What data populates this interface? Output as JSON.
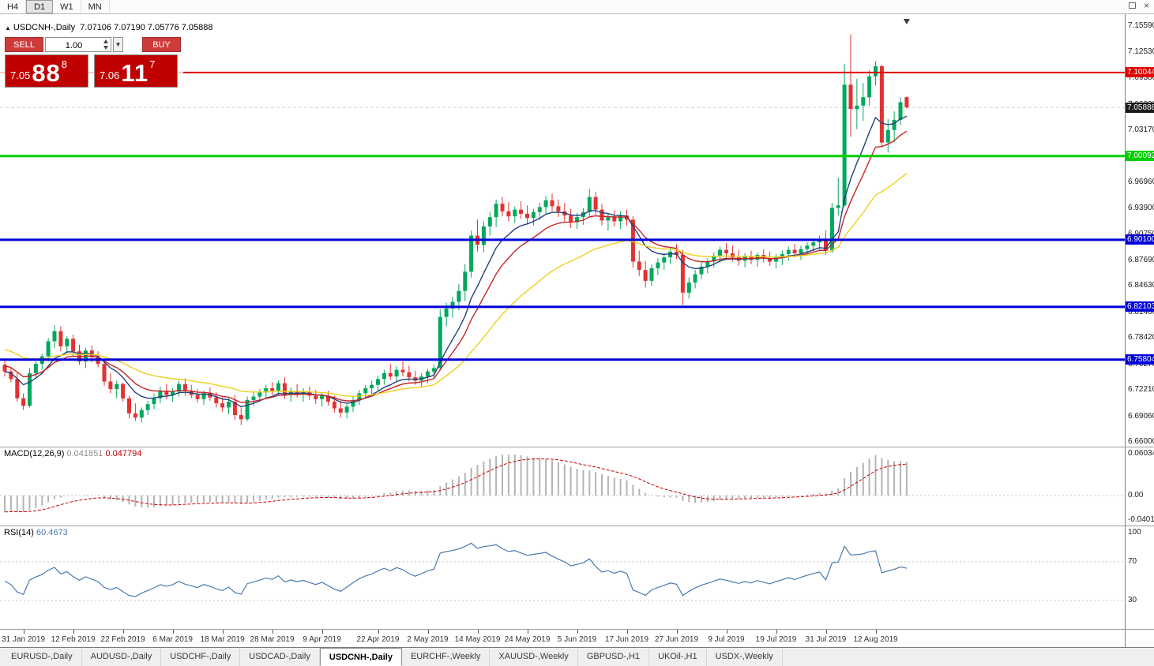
{
  "window": {
    "toolbar": {
      "timeframes": [
        "H4",
        "D1",
        "W1",
        "MN"
      ],
      "active_timeframe": "D1"
    }
  },
  "chart_header": {
    "marker": "▲",
    "symbol": "USDCNH-,Daily",
    "ohlc_text": "7.07106 7.07190 7.05776 7.05888"
  },
  "trade_panel": {
    "sell_label": "SELL",
    "buy_label": "BUY",
    "volume": "1.00",
    "dropdown_icon": "▼",
    "sell_price": {
      "prefix": "7.05",
      "big": "88",
      "sup": "8"
    },
    "buy_price": {
      "prefix": "7.06",
      "big": "11",
      "sup": "7"
    },
    "quote_bg": "#c00000"
  },
  "macd_panel": {
    "name": "MACD(12,26,9)",
    "main_value": "0.041851",
    "signal_value": "0.047794",
    "axis_labels": [
      "0.060343",
      "0.00",
      "-0.040136"
    ],
    "histogram_color": "#b4b4b4",
    "signal_color": "#cc0000",
    "range": [
      -0.040136,
      0.060343
    ]
  },
  "rsi_panel": {
    "name": "RSI(14)",
    "value": "60.4673",
    "axis_labels": [
      "100",
      "70",
      "30"
    ],
    "line_color": "#4a7aae",
    "level_values": [
      70,
      30
    ],
    "range": [
      0,
      100
    ]
  },
  "tabs": [
    {
      "label": "EURUSD-,Daily",
      "active": false
    },
    {
      "label": "AUDUSD-,Daily",
      "active": false
    },
    {
      "label": "USDCHF-,Daily",
      "active": false
    },
    {
      "label": "USDCAD-,Daily",
      "active": false
    },
    {
      "label": "USDCNH-,Daily",
      "active": true
    },
    {
      "label": "EURCHF-,Weekly",
      "active": false
    },
    {
      "label": "XAUUSD-,Weekly",
      "active": false
    },
    {
      "label": "GBPUSD-,H1",
      "active": false
    },
    {
      "label": "UKOil-,H1",
      "active": false
    },
    {
      "label": "USDX-,Weekly",
      "active": false
    }
  ],
  "chart_data": {
    "type": "candlestick",
    "title": "USDCNH Daily",
    "up_color": "#00a85d",
    "down_color": "#e23232",
    "ylim": [
      6.654,
      7.156
    ],
    "current_price": {
      "label": "7.05888",
      "value": 7.05888,
      "bg": "#1a1a1a"
    },
    "price_axis_labels": [
      "7.15590",
      "7.12530",
      "7.09380",
      "7.06230",
      "7.03170",
      "7.00020",
      "6.96960",
      "6.93900",
      "6.90750",
      "6.87690",
      "6.84630",
      "6.81480",
      "6.78420",
      "6.75270",
      "6.72210",
      "6.69060",
      "6.66000"
    ],
    "levels": [
      {
        "label": "7.10044",
        "value": 7.10044,
        "color": "#e00000",
        "width": 2
      },
      {
        "label": "7.00092",
        "value": 7.00092,
        "color": "#00ce00",
        "width": 3
      },
      {
        "label": "6.90100",
        "value": 6.901,
        "color": "#0000d8",
        "width": 3
      },
      {
        "label": "6.82103",
        "value": 6.82103,
        "color": "#0000d8",
        "width": 3
      },
      {
        "label": "6.75804",
        "value": 6.75804,
        "color": "#0000d8",
        "width": 3
      }
    ],
    "ma": [
      {
        "period": 8,
        "color": "#23407b",
        "seed_offset": 0
      },
      {
        "period": 13,
        "color": "#c42525",
        "seed_offset": 0.008
      },
      {
        "period": 30,
        "color": "#eecf1e",
        "seed_offset": 0.028
      }
    ],
    "x_labels": [
      {
        "text": "31 Jan 2019",
        "i": 3
      },
      {
        "text": "12 Feb 2019",
        "i": 11
      },
      {
        "text": "22 Feb 2019",
        "i": 19
      },
      {
        "text": "6 Mar 2019",
        "i": 27
      },
      {
        "text": "18 Mar 2019",
        "i": 35
      },
      {
        "text": "28 Mar 2019",
        "i": 43
      },
      {
        "text": "9 Apr 2019",
        "i": 51
      },
      {
        "text": "22 Apr 2019",
        "i": 60
      },
      {
        "text": "2 May 2019",
        "i": 68
      },
      {
        "text": "14 May 2019",
        "i": 76
      },
      {
        "text": "24 May 2019",
        "i": 84
      },
      {
        "text": "5 Jun 2019",
        "i": 92
      },
      {
        "text": "17 Jun 2019",
        "i": 100
      },
      {
        "text": "27 Jun 2019",
        "i": 108
      },
      {
        "text": "9 Jul 2019",
        "i": 116
      },
      {
        "text": "19 Jul 2019",
        "i": 124
      },
      {
        "text": "31 Jul 2019",
        "i": 132
      },
      {
        "text": "12 Aug 2019",
        "i": 140
      }
    ],
    "ohlc": [
      [
        6.752,
        6.758,
        6.738,
        6.744
      ],
      [
        6.744,
        6.749,
        6.731,
        6.735
      ],
      [
        6.735,
        6.742,
        6.708,
        6.712
      ],
      [
        6.712,
        6.718,
        6.698,
        6.703
      ],
      [
        6.703,
        6.748,
        6.701,
        6.742
      ],
      [
        6.742,
        6.756,
        6.736,
        6.753
      ],
      [
        6.753,
        6.765,
        6.746,
        6.762
      ],
      [
        6.762,
        6.784,
        6.756,
        6.78
      ],
      [
        6.78,
        6.799,
        6.772,
        6.792
      ],
      [
        6.792,
        6.798,
        6.768,
        6.774
      ],
      [
        6.774,
        6.786,
        6.766,
        6.783
      ],
      [
        6.783,
        6.788,
        6.762,
        6.768
      ],
      [
        6.768,
        6.776,
        6.752,
        6.756
      ],
      [
        6.756,
        6.772,
        6.748,
        6.769
      ],
      [
        6.769,
        6.775,
        6.755,
        6.761
      ],
      [
        6.761,
        6.768,
        6.749,
        6.753
      ],
      [
        6.753,
        6.757,
        6.727,
        6.732
      ],
      [
        6.732,
        6.742,
        6.718,
        6.723
      ],
      [
        6.723,
        6.733,
        6.712,
        6.729
      ],
      [
        6.729,
        6.731,
        6.708,
        6.712
      ],
      [
        6.712,
        6.715,
        6.688,
        6.694
      ],
      [
        6.694,
        6.706,
        6.685,
        6.689
      ],
      [
        6.689,
        6.701,
        6.683,
        6.698
      ],
      [
        6.698,
        6.709,
        6.692,
        6.705
      ],
      [
        6.705,
        6.718,
        6.699,
        6.712
      ],
      [
        6.712,
        6.726,
        6.706,
        6.721
      ],
      [
        6.721,
        6.729,
        6.711,
        6.716
      ],
      [
        6.716,
        6.724,
        6.708,
        6.72
      ],
      [
        6.72,
        6.733,
        6.714,
        6.729
      ],
      [
        6.729,
        6.736,
        6.715,
        6.721
      ],
      [
        6.721,
        6.728,
        6.712,
        6.716
      ],
      [
        6.716,
        6.723,
        6.707,
        6.711
      ],
      [
        6.711,
        6.721,
        6.704,
        6.718
      ],
      [
        6.718,
        6.725,
        6.709,
        6.713
      ],
      [
        6.713,
        6.719,
        6.701,
        6.706
      ],
      [
        6.706,
        6.713,
        6.696,
        6.701
      ],
      [
        6.701,
        6.712,
        6.693,
        6.708
      ],
      [
        6.708,
        6.716,
        6.686,
        6.692
      ],
      [
        6.692,
        6.701,
        6.68,
        6.687
      ],
      [
        6.687,
        6.714,
        6.685,
        6.71
      ],
      [
        6.71,
        6.719,
        6.703,
        6.714
      ],
      [
        6.714,
        6.723,
        6.708,
        6.719
      ],
      [
        6.719,
        6.728,
        6.713,
        6.724
      ],
      [
        6.724,
        6.731,
        6.716,
        6.721
      ],
      [
        6.721,
        6.733,
        6.715,
        6.73
      ],
      [
        6.73,
        6.737,
        6.711,
        6.716
      ],
      [
        6.716,
        6.725,
        6.708,
        6.721
      ],
      [
        6.721,
        6.729,
        6.713,
        6.717
      ],
      [
        6.717,
        6.724,
        6.708,
        6.72
      ],
      [
        6.72,
        6.726,
        6.71,
        6.715
      ],
      [
        6.715,
        6.722,
        6.705,
        6.711
      ],
      [
        6.711,
        6.719,
        6.702,
        6.715
      ],
      [
        6.715,
        6.721,
        6.703,
        6.708
      ],
      [
        6.708,
        6.715,
        6.695,
        6.7
      ],
      [
        6.7,
        6.709,
        6.689,
        6.695
      ],
      [
        6.695,
        6.706,
        6.688,
        6.702
      ],
      [
        6.702,
        6.714,
        6.696,
        6.71
      ],
      [
        6.71,
        6.722,
        6.704,
        6.718
      ],
      [
        6.718,
        6.728,
        6.712,
        6.724
      ],
      [
        6.724,
        6.733,
        6.717,
        6.728
      ],
      [
        6.728,
        6.739,
        6.721,
        6.735
      ],
      [
        6.735,
        6.746,
        6.728,
        6.742
      ],
      [
        6.742,
        6.753,
        6.734,
        6.738
      ],
      [
        6.738,
        6.75,
        6.731,
        6.746
      ],
      [
        6.746,
        6.756,
        6.738,
        6.743
      ],
      [
        6.743,
        6.751,
        6.732,
        6.737
      ],
      [
        6.737,
        6.745,
        6.728,
        6.733
      ],
      [
        6.733,
        6.742,
        6.726,
        6.738
      ],
      [
        6.738,
        6.747,
        6.73,
        6.744
      ],
      [
        6.744,
        6.752,
        6.736,
        6.748
      ],
      [
        6.748,
        6.818,
        6.745,
        6.809
      ],
      [
        6.809,
        6.826,
        6.798,
        6.819
      ],
      [
        6.819,
        6.833,
        6.808,
        6.827
      ],
      [
        6.827,
        6.848,
        6.817,
        6.84
      ],
      [
        6.84,
        6.872,
        6.828,
        6.863
      ],
      [
        6.863,
        6.912,
        6.856,
        6.906
      ],
      [
        6.906,
        6.925,
        6.887,
        6.895
      ],
      [
        6.895,
        6.923,
        6.886,
        6.917
      ],
      [
        6.917,
        6.934,
        6.906,
        6.928
      ],
      [
        6.928,
        6.949,
        6.916,
        6.944
      ],
      [
        6.944,
        6.952,
        6.929,
        6.935
      ],
      [
        6.935,
        6.946,
        6.923,
        6.929
      ],
      [
        6.929,
        6.941,
        6.921,
        6.937
      ],
      [
        6.937,
        6.947,
        6.926,
        6.932
      ],
      [
        6.932,
        6.942,
        6.92,
        6.927
      ],
      [
        6.927,
        6.938,
        6.918,
        6.934
      ],
      [
        6.934,
        6.945,
        6.925,
        6.94
      ],
      [
        6.94,
        6.953,
        6.931,
        6.948
      ],
      [
        6.948,
        6.956,
        6.935,
        6.941
      ],
      [
        6.941,
        6.949,
        6.928,
        6.935
      ],
      [
        6.935,
        6.945,
        6.923,
        6.93
      ],
      [
        6.93,
        6.938,
        6.915,
        6.922
      ],
      [
        6.922,
        6.933,
        6.914,
        6.928
      ],
      [
        6.928,
        6.939,
        6.919,
        6.934
      ],
      [
        6.934,
        6.962,
        6.928,
        6.952
      ],
      [
        6.952,
        6.958,
        6.931,
        6.937
      ],
      [
        6.937,
        6.944,
        6.918,
        6.924
      ],
      [
        6.924,
        6.933,
        6.912,
        6.929
      ],
      [
        6.929,
        6.936,
        6.917,
        6.923
      ],
      [
        6.923,
        6.935,
        6.914,
        6.93
      ],
      [
        6.93,
        6.937,
        6.918,
        6.925
      ],
      [
        6.925,
        6.929,
        6.868,
        6.875
      ],
      [
        6.875,
        6.888,
        6.858,
        6.865
      ],
      [
        6.865,
        6.876,
        6.844,
        6.852
      ],
      [
        6.852,
        6.871,
        6.846,
        6.867
      ],
      [
        6.867,
        6.879,
        6.859,
        6.874
      ],
      [
        6.874,
        6.885,
        6.865,
        6.88
      ],
      [
        6.88,
        6.892,
        6.872,
        6.887
      ],
      [
        6.887,
        6.896,
        6.878,
        6.883
      ],
      [
        6.883,
        6.889,
        6.823,
        6.838
      ],
      [
        6.838,
        6.856,
        6.831,
        6.85
      ],
      [
        6.85,
        6.865,
        6.843,
        6.86
      ],
      [
        6.86,
        6.874,
        6.854,
        6.869
      ],
      [
        6.869,
        6.879,
        6.861,
        6.875
      ],
      [
        6.875,
        6.886,
        6.868,
        6.882
      ],
      [
        6.882,
        6.893,
        6.874,
        6.889
      ],
      [
        6.889,
        6.897,
        6.879,
        6.885
      ],
      [
        6.885,
        6.894,
        6.875,
        6.88
      ],
      [
        6.88,
        6.889,
        6.87,
        6.876
      ],
      [
        6.876,
        6.885,
        6.868,
        6.881
      ],
      [
        6.881,
        6.888,
        6.872,
        6.877
      ],
      [
        6.877,
        6.886,
        6.869,
        6.883
      ],
      [
        6.883,
        6.89,
        6.874,
        6.879
      ],
      [
        6.879,
        6.887,
        6.87,
        6.875
      ],
      [
        6.875,
        6.884,
        6.867,
        6.88
      ],
      [
        6.88,
        6.888,
        6.871,
        6.884
      ],
      [
        6.884,
        6.893,
        6.876,
        6.889
      ],
      [
        6.889,
        6.896,
        6.88,
        6.885
      ],
      [
        6.885,
        6.894,
        6.877,
        6.89
      ],
      [
        6.89,
        6.898,
        6.882,
        6.894
      ],
      [
        6.894,
        6.902,
        6.886,
        6.898
      ],
      [
        6.898,
        6.906,
        6.889,
        6.901
      ],
      [
        6.901,
        6.912,
        6.883,
        6.888
      ],
      [
        6.888,
        6.945,
        6.885,
        6.939
      ],
      [
        6.939,
        6.975,
        6.93,
        6.942
      ],
      [
        6.942,
        7.111,
        6.94,
        7.086
      ],
      [
        7.086,
        7.146,
        7.024,
        7.057
      ],
      [
        7.057,
        7.093,
        7.033,
        7.061
      ],
      [
        7.061,
        7.088,
        7.043,
        7.071
      ],
      [
        7.071,
        7.103,
        7.061,
        7.096
      ],
      [
        7.096,
        7.114,
        7.085,
        7.108
      ],
      [
        7.108,
        7.11,
        7.012,
        7.017
      ],
      [
        7.017,
        7.045,
        7.005,
        7.032
      ],
      [
        7.032,
        7.054,
        7.017,
        7.044
      ],
      [
        7.044,
        7.071,
        7.038,
        7.065
      ],
      [
        7.07106,
        7.0719,
        7.05776,
        7.05888
      ]
    ]
  }
}
